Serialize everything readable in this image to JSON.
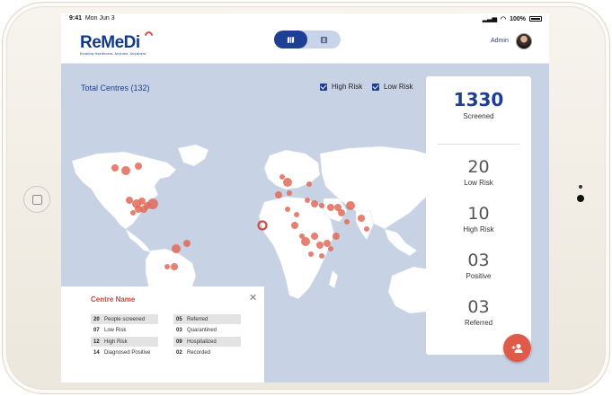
{
  "status": {
    "time": "9:41",
    "date": "Mon Jun 3",
    "battery": "100%"
  },
  "header": {
    "brand": "ReMeDi",
    "tagline": "Enabling Healthcare. Anytime. Anywhere.",
    "user": "Admin",
    "views": [
      "map-icon",
      "list-icon"
    ]
  },
  "map": {
    "total_label": "Total Centres (132)",
    "filters": [
      {
        "label": "High Risk",
        "checked": true
      },
      {
        "label": "Low Risk",
        "checked": true
      }
    ],
    "marker_color": "#e06a5a",
    "land_color": "#ffffff",
    "water_color": "#c7d3e5"
  },
  "stats": [
    {
      "value": "1330",
      "label": "Screened"
    },
    {
      "value": "20",
      "label": "Low Risk"
    },
    {
      "value": "10",
      "label": "High Risk"
    },
    {
      "value": "03",
      "label": "Positive"
    },
    {
      "value": "03",
      "label": "Referred"
    }
  ],
  "centre_card": {
    "title": "Centre Name",
    "left": [
      {
        "num": "20",
        "label": "People screened"
      },
      {
        "num": "07",
        "label": "Low Risk"
      },
      {
        "num": "12",
        "label": "High Risk"
      },
      {
        "num": "14",
        "label": "Diagnosed Positive"
      }
    ],
    "right": [
      {
        "num": "05",
        "label": "Referred"
      },
      {
        "num": "03",
        "label": "Quarantined"
      },
      {
        "num": "09",
        "label": "Hospitalized"
      },
      {
        "num": "02",
        "label": "Recorded"
      }
    ]
  },
  "fab_icon": "add-person-icon",
  "colors": {
    "brand": "#1e3f93",
    "accent": "#e05a4a"
  }
}
